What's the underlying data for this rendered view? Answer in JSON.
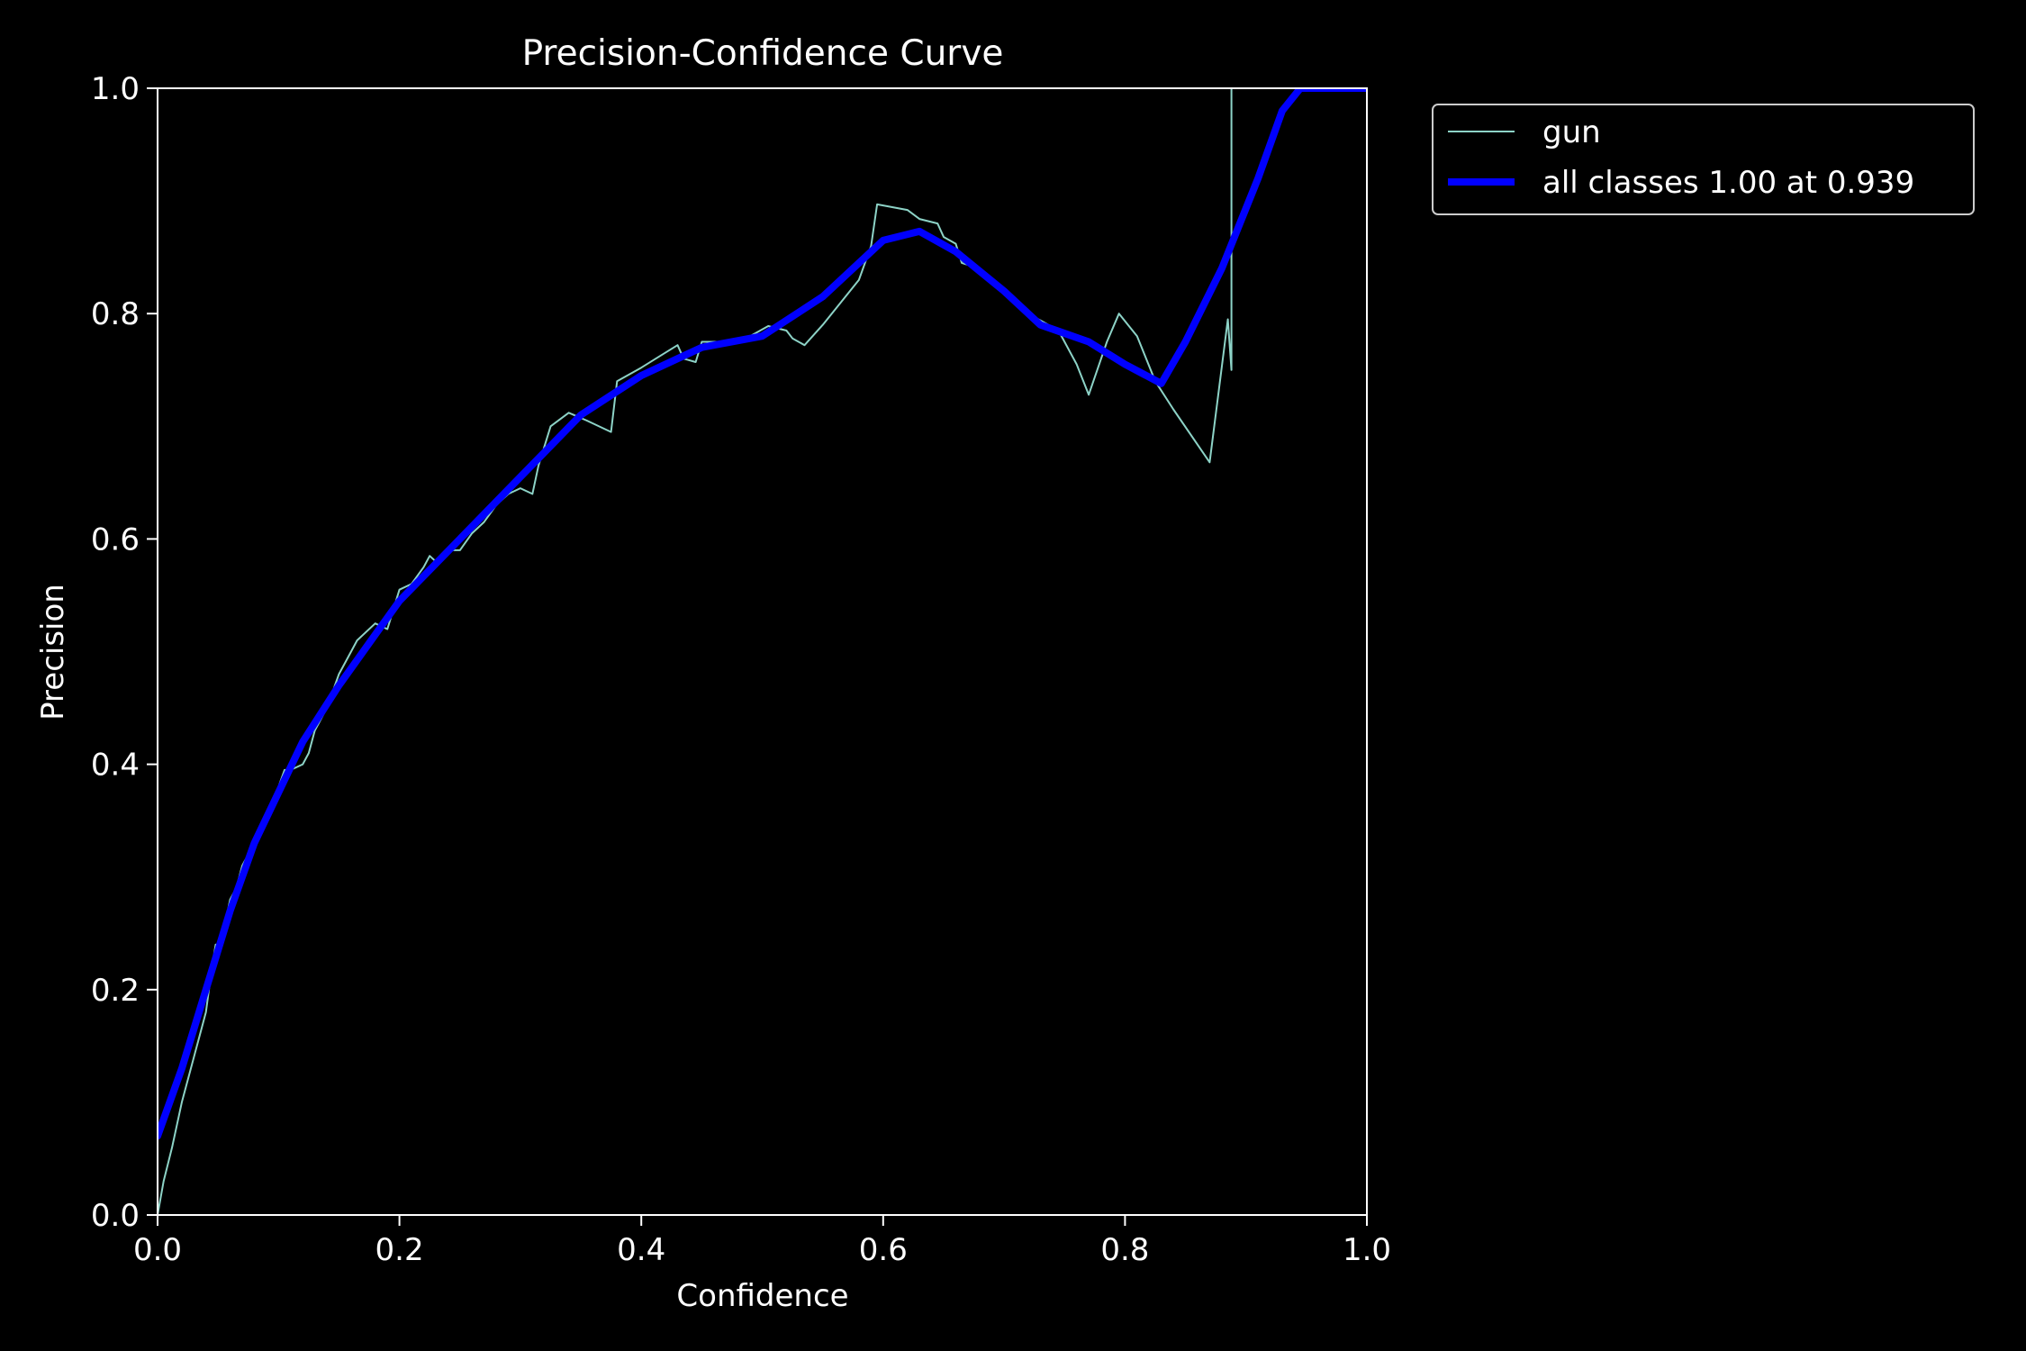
{
  "chart_data": {
    "type": "line",
    "title": "Precision-Confidence Curve",
    "xlabel": "Confidence",
    "ylabel": "Precision",
    "xlim": [
      0,
      1
    ],
    "ylim": [
      0,
      1
    ],
    "xticks": [
      "0.0",
      "0.2",
      "0.4",
      "0.6",
      "0.8",
      "1.0"
    ],
    "yticks": [
      "0.0",
      "0.2",
      "0.4",
      "0.6",
      "0.8",
      "1.0"
    ],
    "grid": false,
    "legend_placement": "outside-upper-right",
    "colors": {
      "background": "#000000",
      "gun": "#8dd3c7",
      "all": "#0000ff",
      "text": "#ffffff"
    },
    "series": [
      {
        "name": "gun",
        "color": "#8dd3c7",
        "points": [
          [
            0.0,
            0.0
          ],
          [
            0.005,
            0.03
          ],
          [
            0.012,
            0.06
          ],
          [
            0.02,
            0.1
          ],
          [
            0.03,
            0.14
          ],
          [
            0.04,
            0.18
          ],
          [
            0.045,
            0.22
          ],
          [
            0.048,
            0.24
          ],
          [
            0.052,
            0.24
          ],
          [
            0.06,
            0.28
          ],
          [
            0.065,
            0.29
          ],
          [
            0.07,
            0.31
          ],
          [
            0.075,
            0.32
          ],
          [
            0.08,
            0.33
          ],
          [
            0.085,
            0.34
          ],
          [
            0.09,
            0.35
          ],
          [
            0.1,
            0.38
          ],
          [
            0.105,
            0.395
          ],
          [
            0.11,
            0.395
          ],
          [
            0.12,
            0.4
          ],
          [
            0.125,
            0.41
          ],
          [
            0.13,
            0.43
          ],
          [
            0.14,
            0.45
          ],
          [
            0.15,
            0.48
          ],
          [
            0.16,
            0.5
          ],
          [
            0.165,
            0.51
          ],
          [
            0.18,
            0.525
          ],
          [
            0.19,
            0.52
          ],
          [
            0.2,
            0.555
          ],
          [
            0.21,
            0.56
          ],
          [
            0.22,
            0.575
          ],
          [
            0.225,
            0.585
          ],
          [
            0.23,
            0.58
          ],
          [
            0.24,
            0.59
          ],
          [
            0.25,
            0.59
          ],
          [
            0.26,
            0.605
          ],
          [
            0.27,
            0.615
          ],
          [
            0.28,
            0.63
          ],
          [
            0.29,
            0.64
          ],
          [
            0.3,
            0.645
          ],
          [
            0.31,
            0.64
          ],
          [
            0.315,
            0.665
          ],
          [
            0.325,
            0.7
          ],
          [
            0.34,
            0.712
          ],
          [
            0.355,
            0.705
          ],
          [
            0.375,
            0.695
          ],
          [
            0.38,
            0.74
          ],
          [
            0.4,
            0.752
          ],
          [
            0.415,
            0.762
          ],
          [
            0.43,
            0.772
          ],
          [
            0.435,
            0.76
          ],
          [
            0.445,
            0.757
          ],
          [
            0.45,
            0.775
          ],
          [
            0.47,
            0.775
          ],
          [
            0.49,
            0.78
          ],
          [
            0.505,
            0.789
          ],
          [
            0.52,
            0.785
          ],
          [
            0.525,
            0.778
          ],
          [
            0.535,
            0.772
          ],
          [
            0.55,
            0.79
          ],
          [
            0.565,
            0.81
          ],
          [
            0.58,
            0.83
          ],
          [
            0.59,
            0.86
          ],
          [
            0.595,
            0.897
          ],
          [
            0.62,
            0.892
          ],
          [
            0.63,
            0.884
          ],
          [
            0.645,
            0.88
          ],
          [
            0.65,
            0.868
          ],
          [
            0.66,
            0.862
          ],
          [
            0.665,
            0.845
          ],
          [
            0.68,
            0.84
          ],
          [
            0.7,
            0.82
          ],
          [
            0.72,
            0.8
          ],
          [
            0.745,
            0.785
          ],
          [
            0.76,
            0.755
          ],
          [
            0.77,
            0.728
          ],
          [
            0.785,
            0.775
          ],
          [
            0.795,
            0.8
          ],
          [
            0.81,
            0.78
          ],
          [
            0.825,
            0.74
          ],
          [
            0.84,
            0.715
          ],
          [
            0.87,
            0.668
          ],
          [
            0.885,
            0.795
          ],
          [
            0.888,
            0.75
          ],
          [
            0.888,
            1.0
          ],
          [
            1.0,
            1.0
          ]
        ]
      },
      {
        "name": "all classes 1.00 at 0.939",
        "color": "#0000ff",
        "points": [
          [
            0.0,
            0.07
          ],
          [
            0.02,
            0.13
          ],
          [
            0.04,
            0.2
          ],
          [
            0.06,
            0.27
          ],
          [
            0.08,
            0.33
          ],
          [
            0.1,
            0.375
          ],
          [
            0.12,
            0.42
          ],
          [
            0.15,
            0.47
          ],
          [
            0.18,
            0.515
          ],
          [
            0.2,
            0.545
          ],
          [
            0.25,
            0.6
          ],
          [
            0.3,
            0.655
          ],
          [
            0.35,
            0.71
          ],
          [
            0.4,
            0.745
          ],
          [
            0.45,
            0.77
          ],
          [
            0.5,
            0.78
          ],
          [
            0.55,
            0.815
          ],
          [
            0.6,
            0.865
          ],
          [
            0.63,
            0.873
          ],
          [
            0.66,
            0.855
          ],
          [
            0.7,
            0.82
          ],
          [
            0.73,
            0.79
          ],
          [
            0.77,
            0.775
          ],
          [
            0.8,
            0.755
          ],
          [
            0.83,
            0.738
          ],
          [
            0.85,
            0.775
          ],
          [
            0.88,
            0.84
          ],
          [
            0.91,
            0.92
          ],
          [
            0.93,
            0.98
          ],
          [
            0.945,
            1.0
          ],
          [
            1.0,
            1.0
          ]
        ]
      }
    ]
  }
}
